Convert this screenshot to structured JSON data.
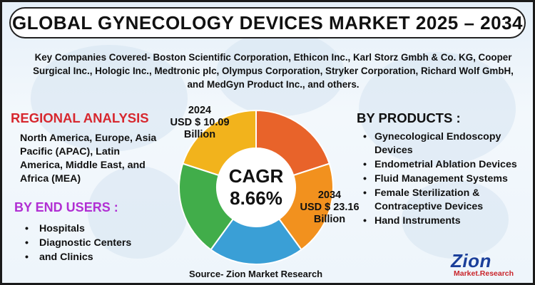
{
  "title": "GLOBAL GYNECOLOGY DEVICES MARKET 2025 – 2034",
  "companies_text": "Key Companies Covered- Boston Scientific Corporation, Ethicon Inc., Karl Storz Gmbh & Co. KG, Cooper Surgical Inc., Hologic Inc., Medtronic plc, Olympus Corporation, Stryker Corporation, Richard Wolf GmbH, and MedGyn Product Inc., and others.",
  "regional": {
    "heading": "REGIONAL ANALYSIS",
    "text": "North America, Europe, Asia Pacific (APAC), Latin America, Middle East, and Africa (MEA)"
  },
  "end_users": {
    "heading": "BY END USERS :",
    "items": [
      "Hospitals",
      "Diagnostic Centers",
      "and Clinics"
    ]
  },
  "products": {
    "heading": "BY PRODUCTS :",
    "items": [
      "Gynecological Endoscopy Devices",
      "Endometrial Ablation Devices",
      "Fluid Management Systems",
      "Female Sterilization & Contraceptive Devices",
      "Hand Instruments"
    ]
  },
  "bullet": "•",
  "market_2024": {
    "year": "2024",
    "value": "USD $ 10.09",
    "unit": "Billion"
  },
  "market_2034": {
    "year": "2034",
    "value": "USD $ 23.16",
    "unit": "Billion"
  },
  "cagr": {
    "label": "CAGR",
    "value": "8.66%"
  },
  "donut_colors": [
    "#e8632a",
    "#f2911e",
    "#3a9fd6",
    "#41ad4a",
    "#f2b31c"
  ],
  "source": "Source- Zion Market Research",
  "logo": {
    "main": "Zion",
    "sub": "Market.Research"
  },
  "colors": {
    "regional_heading": "#d7282f",
    "end_users_heading": "#b12fd3"
  }
}
